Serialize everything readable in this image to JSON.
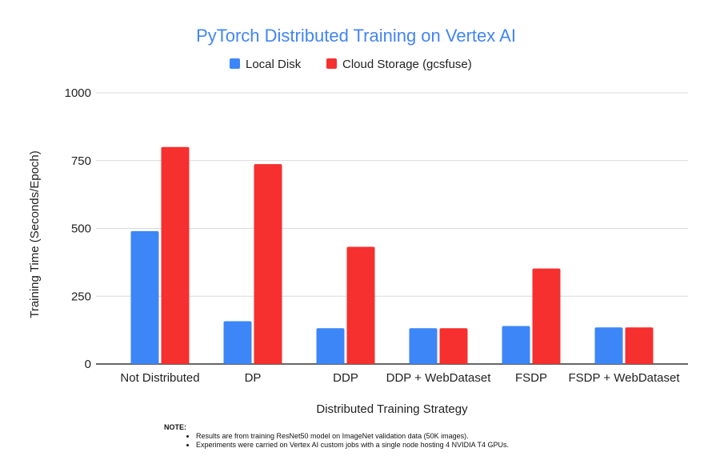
{
  "colors": {
    "title": "#4285f4",
    "local": "#3d86f7",
    "cloud": "#f5302e",
    "grid": "#d9d9d9",
    "axis": "#333333"
  },
  "chart_data": {
    "type": "bar",
    "title": "PyTorch Distributed Training on Vertex AI",
    "xlabel": "Distributed Training Strategy",
    "ylabel": "Training Time (Seconds/Epoch)",
    "ylim": [
      0,
      1000
    ],
    "yticks": [
      0,
      250,
      500,
      750,
      1000
    ],
    "grid": true,
    "legend_position": "top",
    "categories": [
      "Not Distributed",
      "DP",
      "DDP",
      "DDP + WebDataset",
      "FSDP",
      "FSDP + WebDataset"
    ],
    "series": [
      {
        "name": "Local Disk",
        "color": "#3d86f7",
        "values": [
          490,
          158,
          132,
          132,
          140,
          135
        ]
      },
      {
        "name": "Cloud Storage (gcsfuse)",
        "color": "#f5302e",
        "values": [
          800,
          737,
          432,
          132,
          352,
          135
        ]
      }
    ]
  },
  "note": {
    "heading": "NOTE:",
    "items": [
      "Results are from training ResNet50 model on ImageNet validation data (50K images).",
      "Experiments were carried on Vertex AI custom jobs with a single node hosting 4 NVIDIA T4 GPUs."
    ]
  }
}
